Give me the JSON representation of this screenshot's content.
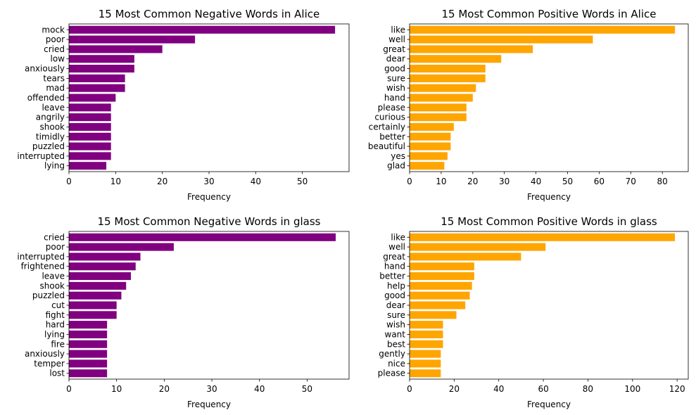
{
  "colors": {
    "negative": "#800080",
    "positive": "#ffa500"
  },
  "chart_data": [
    {
      "type": "bar",
      "orientation": "horizontal",
      "title": "15 Most Common Negative Words in Alice",
      "xlabel": "Frequency",
      "ylabel": "",
      "color": "#800080",
      "categories": [
        "mock",
        "poor",
        "cried",
        "low",
        "anxiously",
        "tears",
        "mad",
        "offended",
        "leave",
        "angrily",
        "shook",
        "timidly",
        "puzzled",
        "interrupted",
        "lying"
      ],
      "values": [
        57,
        27,
        20,
        14,
        14,
        12,
        12,
        10,
        9,
        9,
        9,
        9,
        9,
        9,
        8
      ],
      "xlim": [
        0,
        60
      ],
      "xticks": [
        0,
        10,
        20,
        30,
        40,
        50
      ]
    },
    {
      "type": "bar",
      "orientation": "horizontal",
      "title": "15 Most Common Positive Words in Alice",
      "xlabel": "Frequency",
      "ylabel": "",
      "color": "#ffa500",
      "categories": [
        "like",
        "well",
        "great",
        "dear",
        "good",
        "sure",
        "wish",
        "hand",
        "please",
        "curious",
        "certainly",
        "better",
        "beautiful",
        "yes",
        "glad"
      ],
      "values": [
        84,
        58,
        39,
        29,
        24,
        24,
        21,
        20,
        18,
        18,
        14,
        13,
        13,
        12,
        11
      ],
      "xlim": [
        0,
        88.2
      ],
      "xticks": [
        0,
        10,
        20,
        30,
        40,
        50,
        60,
        70,
        80
      ]
    },
    {
      "type": "bar",
      "orientation": "horizontal",
      "title": "15 Most Common Negative Words in glass",
      "xlabel": "Frequency",
      "ylabel": "",
      "color": "#800080",
      "categories": [
        "cried",
        "poor",
        "interrupted",
        "frightened",
        "leave",
        "shook",
        "puzzled",
        "cut",
        "fight",
        "hard",
        "lying",
        "fire",
        "anxiously",
        "temper",
        "lost"
      ],
      "values": [
        56,
        22,
        15,
        14,
        13,
        12,
        11,
        10,
        10,
        8,
        8,
        8,
        8,
        8,
        8
      ],
      "xlim": [
        0,
        58.8
      ],
      "xticks": [
        0,
        10,
        20,
        30,
        40,
        50
      ]
    },
    {
      "type": "bar",
      "orientation": "horizontal",
      "title": "15 Most Common Positive Words in glass",
      "xlabel": "Frequency",
      "ylabel": "",
      "color": "#ffa500",
      "categories": [
        "like",
        "well",
        "great",
        "hand",
        "better",
        "help",
        "good",
        "dear",
        "sure",
        "wish",
        "want",
        "best",
        "gently",
        "nice",
        "please"
      ],
      "values": [
        119,
        61,
        50,
        29,
        29,
        28,
        27,
        25,
        21,
        15,
        15,
        15,
        14,
        14,
        14
      ],
      "xlim": [
        0,
        125
      ],
      "xticks": [
        0,
        20,
        40,
        60,
        80,
        100,
        120
      ]
    }
  ]
}
